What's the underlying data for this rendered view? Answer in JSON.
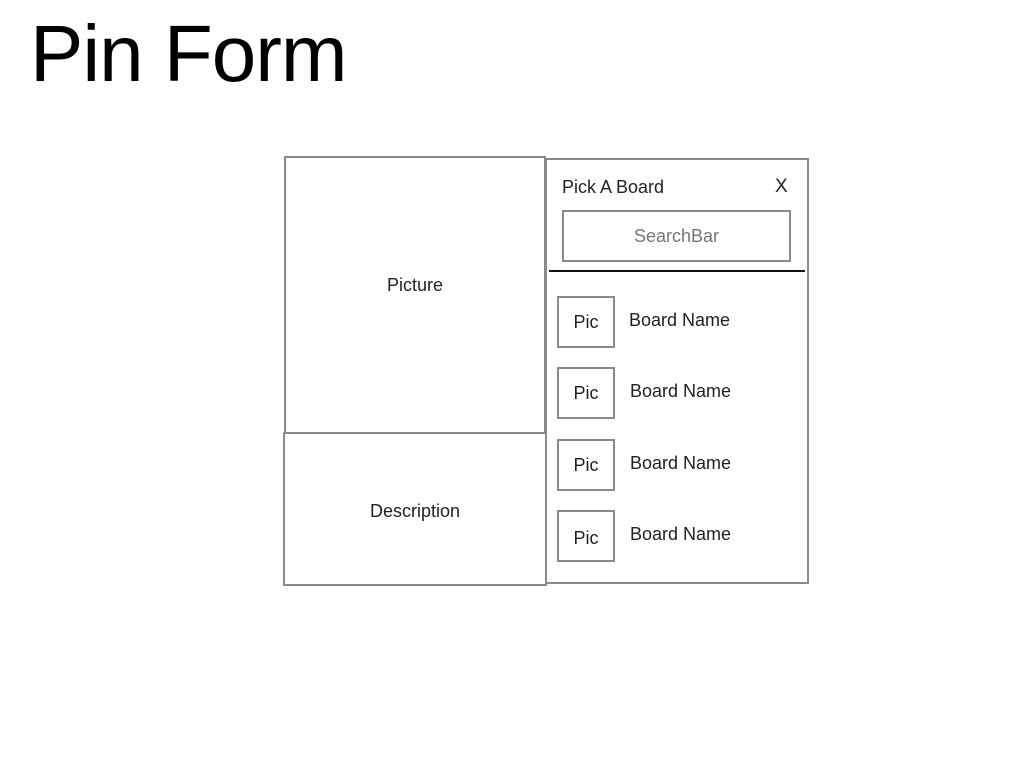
{
  "page": {
    "title": "Pin Form"
  },
  "pin": {
    "picture_label": "Picture",
    "description_label": "Description"
  },
  "board_picker": {
    "title": "Pick A Board",
    "close_label": "X",
    "search_placeholder": "SearchBar",
    "boards": [
      {
        "pic_label": "Pic",
        "name": "Board Name"
      },
      {
        "pic_label": "Pic",
        "name": "Board Name"
      },
      {
        "pic_label": "Pic",
        "name": "Board Name"
      },
      {
        "pic_label": "Pic",
        "name": "Board Name"
      }
    ]
  }
}
